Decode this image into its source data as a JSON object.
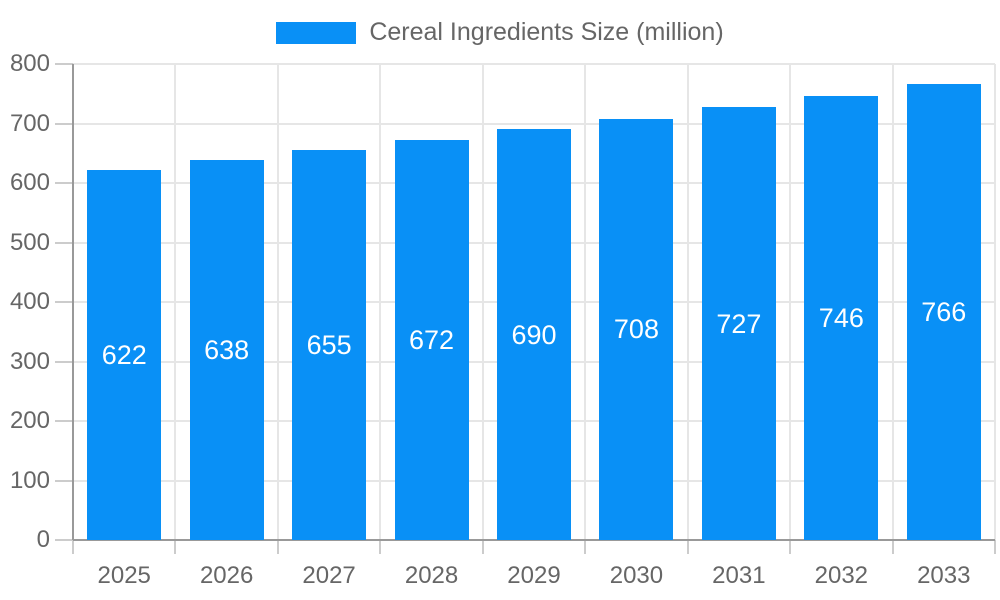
{
  "chart": {
    "legend": {
      "label": "Cereal Ingredients Size (million)"
    }
  },
  "chart_data": {
    "type": "bar",
    "title": "Cereal Ingredients Size (million)",
    "series_name": "Cereal Ingredients Size (million)",
    "categories": [
      "2025",
      "2026",
      "2027",
      "2028",
      "2029",
      "2030",
      "2031",
      "2032",
      "2033"
    ],
    "values": [
      622,
      638,
      655,
      672,
      690,
      708,
      727,
      746,
      766
    ],
    "xlabel": "",
    "ylabel": "",
    "ylim": [
      0,
      800
    ],
    "y_ticks": [
      0,
      100,
      200,
      300,
      400,
      500,
      600,
      700,
      800
    ],
    "grid": true,
    "legend_position": "top-center",
    "value_label_position": "inside-center",
    "colors": {
      "bar": "#0990f6",
      "axis_line": "#999999",
      "gridline": "#e6e6e6",
      "tick": "#cccccc",
      "axis_label_text": "#666666",
      "value_label_text": "#ffffff",
      "legend_text": "#666666",
      "background": "#ffffff"
    }
  }
}
